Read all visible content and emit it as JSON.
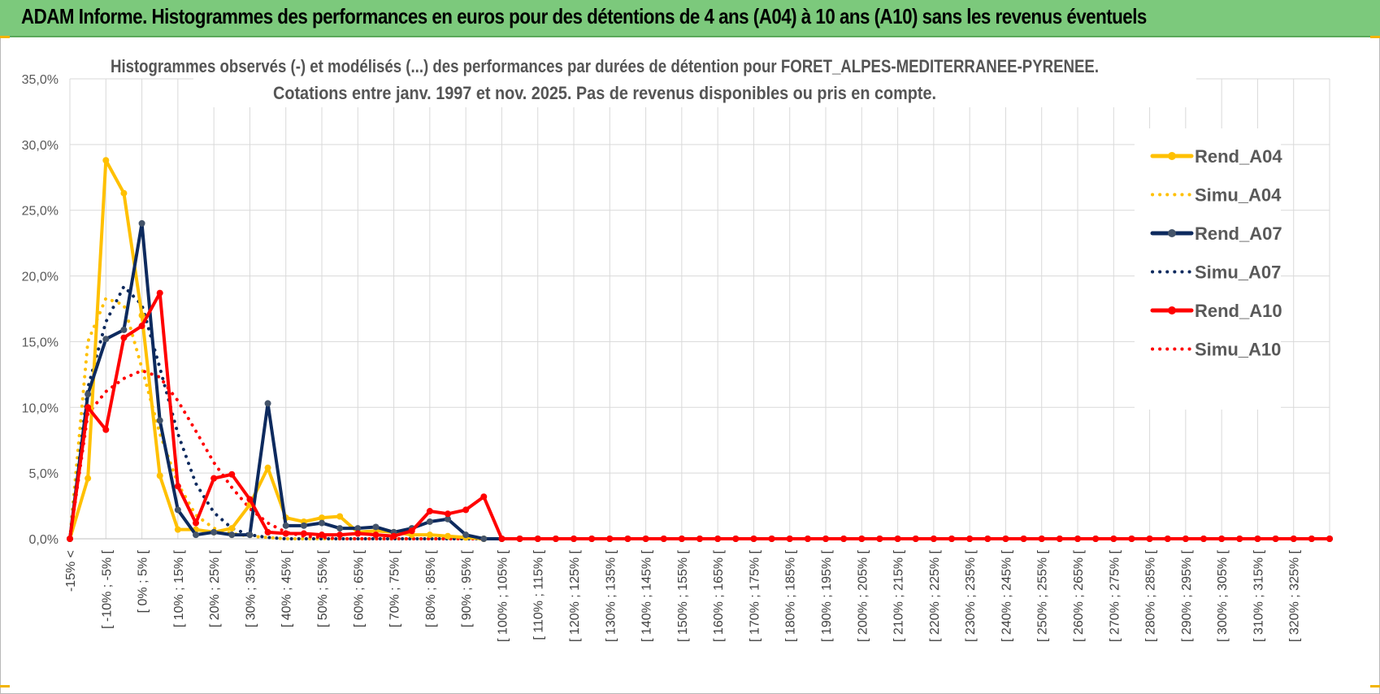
{
  "header": {
    "banner_title": "ADAM Informe. Histogrammes des performances en euros pour des détentions de 4 ans (A04) à 10 ans (A10) sans les revenus éventuels"
  },
  "colors": {
    "banner_bg": "#7cc97c",
    "A04": "#ffc000",
    "A07": "#0d2a5e",
    "A10": "#ff0000",
    "grid": "#d9d9d9"
  },
  "chart_data": {
    "type": "line",
    "title_line1": "Histogrammes observés (-) et modélisés (...) des performances par durées de détention pour FORET_ALPES-MEDITERRANEE-PYRENEE.",
    "title_line2": "Cotations entre janv. 1997 et nov. 2025. Pas de revenus disponibles ou pris en compte.",
    "xlabel": "",
    "ylabel": "",
    "ylim": [
      0,
      35
    ],
    "y_ticks": [
      "0,0%",
      "5,0%",
      "10,0%",
      "15,0%",
      "20,0%",
      "25,0%",
      "30,0%",
      "35,0%"
    ],
    "grid": true,
    "legend_position": "right",
    "x_ticks": [
      "-15% <",
      "[ -10% ; -5% [",
      "[ 0% ; 5% [",
      "[ 10% ; 15% [",
      "[ 20% ; 25% [",
      "[ 30% ; 35% [",
      "[ 40% ; 45% [",
      "[ 50% ; 55% [",
      "[ 60% ; 65% [",
      "[ 70% ; 75% [",
      "[ 80% ; 85% [",
      "[ 90% ; 95% [",
      "[ 100% ; 105% [",
      "[ 110% ; 115% [",
      "[ 120% ; 125% [",
      "[ 130% ; 135% [",
      "[ 140% ; 145% [",
      "[ 150% ; 155% [",
      "[ 160% ; 165% [",
      "[ 170% ; 175% [",
      "[ 180% ; 185% [",
      "[ 190% ; 195% [",
      "[ 200% ; 205% [",
      "[ 210% ; 215% [",
      "[ 220% ; 225% [",
      "[ 230% ; 235% [",
      "[ 240% ; 245% [",
      "[ 250% ; 255% [",
      "[ 260% ; 265% [",
      "[ 270% ; 275% [",
      "[ 280% ; 285% [",
      "[ 290% ; 295% [",
      "[ 300% ; 305% [",
      "[ 310% ; 315% [",
      "[ 320% ; 325% ["
    ],
    "x_tick_every": 2,
    "n_points": 71,
    "series": [
      {
        "name": "Rend_A04",
        "style": "solid",
        "color": "#ffc000",
        "marker": true,
        "values": [
          0,
          4.6,
          28.8,
          26.3,
          17.0,
          4.8,
          0.7,
          0.7,
          0.5,
          0.8,
          2.6,
          5.4,
          1.6,
          1.3,
          1.6,
          1.7,
          0.5,
          0.6,
          0.5,
          0.3,
          0.3,
          0.2,
          0.1,
          0,
          0
        ]
      },
      {
        "name": "Simu_A04",
        "style": "dotted",
        "color": "#ffc000",
        "marker": false,
        "values": [
          0,
          15.0,
          18.3,
          17.8,
          13.0,
          8.0,
          4.2,
          1.8,
          0.8,
          0.4,
          0.2,
          0.1,
          0,
          0,
          0,
          0,
          0,
          0,
          0,
          0,
          0,
          0,
          0,
          0,
          0
        ]
      },
      {
        "name": "Rend_A07",
        "style": "solid",
        "color": "#0d2a5e",
        "marker": true,
        "values": [
          0,
          11.0,
          15.2,
          15.9,
          24.0,
          9.0,
          2.2,
          0.3,
          0.5,
          0.3,
          0.3,
          10.3,
          1.0,
          1.0,
          1.2,
          0.8,
          0.8,
          0.9,
          0.5,
          0.8,
          1.3,
          1.5,
          0.3,
          0,
          0
        ]
      },
      {
        "name": "Simu_A07",
        "style": "dotted",
        "color": "#0d2a5e",
        "marker": false,
        "values": [
          0,
          11.5,
          16.5,
          19.2,
          17.8,
          13.0,
          8.0,
          4.2,
          2.0,
          0.8,
          0.3,
          0.1,
          0,
          0,
          0,
          0,
          0,
          0,
          0,
          0,
          0,
          0,
          0,
          0,
          0
        ]
      },
      {
        "name": "Rend_A10",
        "style": "solid",
        "color": "#ff0000",
        "marker": true,
        "values": [
          0,
          10.0,
          8.3,
          15.3,
          16.2,
          18.7,
          4.0,
          1.2,
          4.6,
          4.9,
          3.0,
          0.5,
          0.4,
          0.4,
          0.3,
          0.3,
          0.4,
          0.3,
          0.2,
          0.6,
          2.1,
          1.9,
          2.2,
          3.2,
          0
        ]
      },
      {
        "name": "Simu_A10",
        "style": "dotted",
        "color": "#ff0000",
        "marker": false,
        "values": [
          0,
          9.5,
          11.2,
          12.2,
          12.8,
          12.3,
          10.5,
          8.2,
          5.8,
          3.9,
          2.3,
          1.2,
          0.5,
          0.2,
          0.1,
          0,
          0,
          0,
          0,
          0,
          0,
          0,
          0,
          0,
          0
        ]
      }
    ]
  }
}
